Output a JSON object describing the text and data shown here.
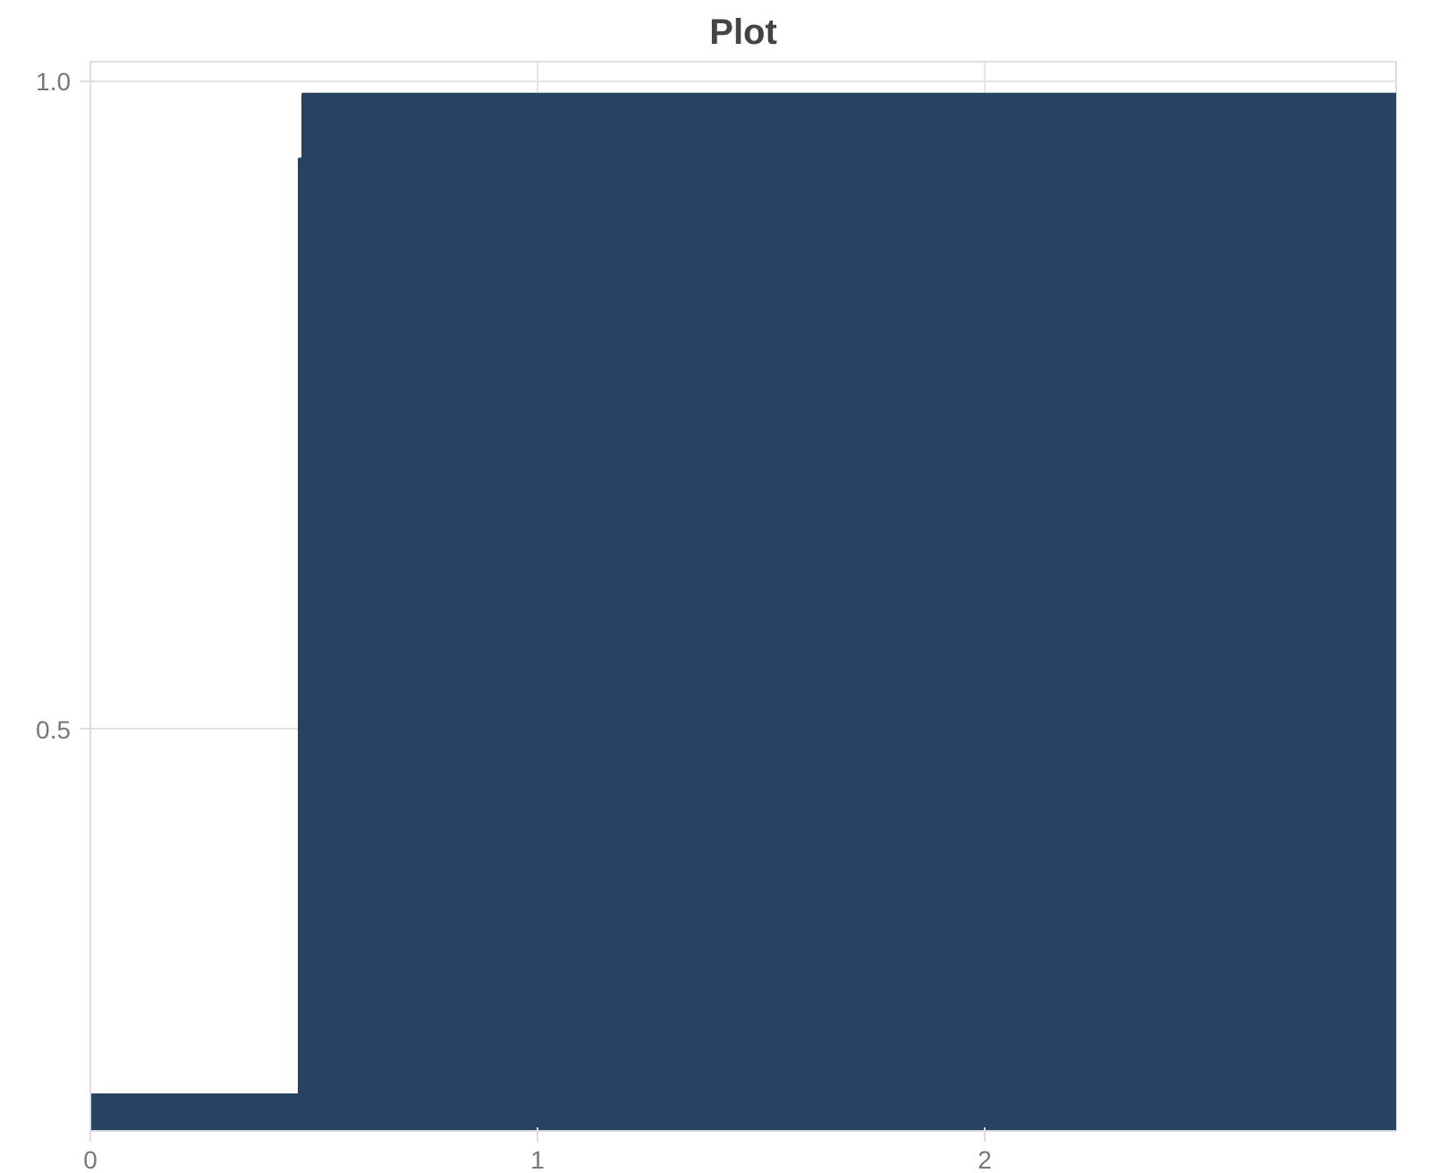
{
  "chart_data": {
    "type": "step",
    "title": "Plot",
    "x": [
      0,
      0.467,
      0.475,
      2.92
    ],
    "series": [
      {
        "color": "#284262",
        "values": [
          0.218,
          0.94,
          0.99,
          0.99
        ]
      }
    ],
    "xlim": [
      0,
      2.92
    ],
    "ylim": [
      0.19,
      1.015
    ],
    "xticks": [
      0,
      1,
      2
    ],
    "yticks": [
      {
        "value": 0.5,
        "label": "0.5"
      },
      {
        "value": 1.0,
        "label": "1.0"
      }
    ],
    "grid": true
  }
}
